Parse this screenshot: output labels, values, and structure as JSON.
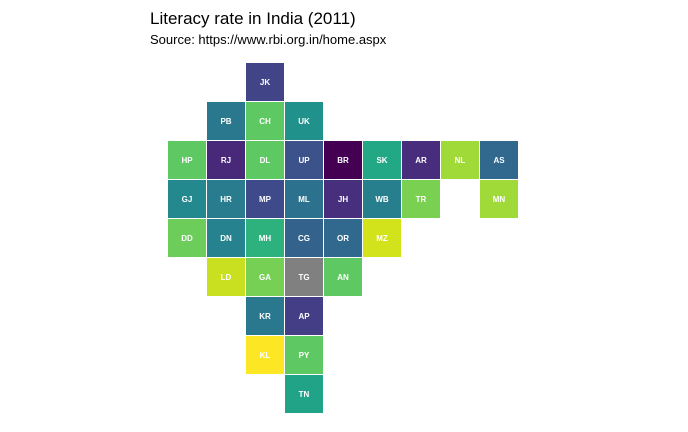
{
  "chart_data": {
    "type": "tilemap",
    "title": "Literacy rate in India (2011)",
    "subtitle": "Source: https://www.rbi.org.in/home.aspx",
    "tiles": [
      {
        "label": "JK",
        "row": 0,
        "col": 2,
        "color": "#414487"
      },
      {
        "label": "PB",
        "row": 1,
        "col": 1,
        "color": "#2a788e"
      },
      {
        "label": "CH",
        "row": 1,
        "col": 2,
        "color": "#5ec962"
      },
      {
        "label": "UK",
        "row": 1,
        "col": 3,
        "color": "#21918c"
      },
      {
        "label": "HP",
        "row": 2,
        "col": 0,
        "color": "#5ec962"
      },
      {
        "label": "RJ",
        "row": 2,
        "col": 1,
        "color": "#482878"
      },
      {
        "label": "DL",
        "row": 2,
        "col": 2,
        "color": "#5ec962"
      },
      {
        "label": "UP",
        "row": 2,
        "col": 3,
        "color": "#3b528b"
      },
      {
        "label": "BR",
        "row": 2,
        "col": 4,
        "color": "#440154"
      },
      {
        "label": "SK",
        "row": 2,
        "col": 5,
        "color": "#22a884"
      },
      {
        "label": "AR",
        "row": 2,
        "col": 6,
        "color": "#472d7b"
      },
      {
        "label": "NL",
        "row": 2,
        "col": 7,
        "color": "#a0da39"
      },
      {
        "label": "AS",
        "row": 2,
        "col": 8,
        "color": "#31688e"
      },
      {
        "label": "GJ",
        "row": 3,
        "col": 0,
        "color": "#23898e"
      },
      {
        "label": "HR",
        "row": 3,
        "col": 1,
        "color": "#287c8e"
      },
      {
        "label": "MP",
        "row": 3,
        "col": 2,
        "color": "#3e4a89"
      },
      {
        "label": "ML",
        "row": 3,
        "col": 3,
        "color": "#2c728e"
      },
      {
        "label": "JH",
        "row": 3,
        "col": 4,
        "color": "#472f7d"
      },
      {
        "label": "WB",
        "row": 3,
        "col": 5,
        "color": "#277f8e"
      },
      {
        "label": "TR",
        "row": 3,
        "col": 6,
        "color": "#7ad151"
      },
      {
        "label": "MN",
        "row": 3,
        "col": 8,
        "color": "#a0da39"
      },
      {
        "label": "DD",
        "row": 4,
        "col": 0,
        "color": "#6ccd5a"
      },
      {
        "label": "DN",
        "row": 4,
        "col": 1,
        "color": "#26828e"
      },
      {
        "label": "MH",
        "row": 4,
        "col": 2,
        "color": "#2db27d"
      },
      {
        "label": "CG",
        "row": 4,
        "col": 3,
        "color": "#33638d"
      },
      {
        "label": "OR",
        "row": 4,
        "col": 4,
        "color": "#31688e"
      },
      {
        "label": "MZ",
        "row": 4,
        "col": 5,
        "color": "#d2e21b"
      },
      {
        "label": "LD",
        "row": 5,
        "col": 1,
        "color": "#c8e020"
      },
      {
        "label": "GA",
        "row": 5,
        "col": 2,
        "color": "#75d054"
      },
      {
        "label": "TG",
        "row": 5,
        "col": 3,
        "color": "#808080"
      },
      {
        "label": "AN",
        "row": 5,
        "col": 4,
        "color": "#5ec962"
      },
      {
        "label": "KR",
        "row": 6,
        "col": 2,
        "color": "#2a788e"
      },
      {
        "label": "AP",
        "row": 6,
        "col": 3,
        "color": "#433e85"
      },
      {
        "label": "KL",
        "row": 7,
        "col": 2,
        "color": "#fde725"
      },
      {
        "label": "PY",
        "row": 7,
        "col": 3,
        "color": "#5ec962"
      },
      {
        "label": "TN",
        "row": 8,
        "col": 3,
        "color": "#20a386"
      }
    ]
  }
}
